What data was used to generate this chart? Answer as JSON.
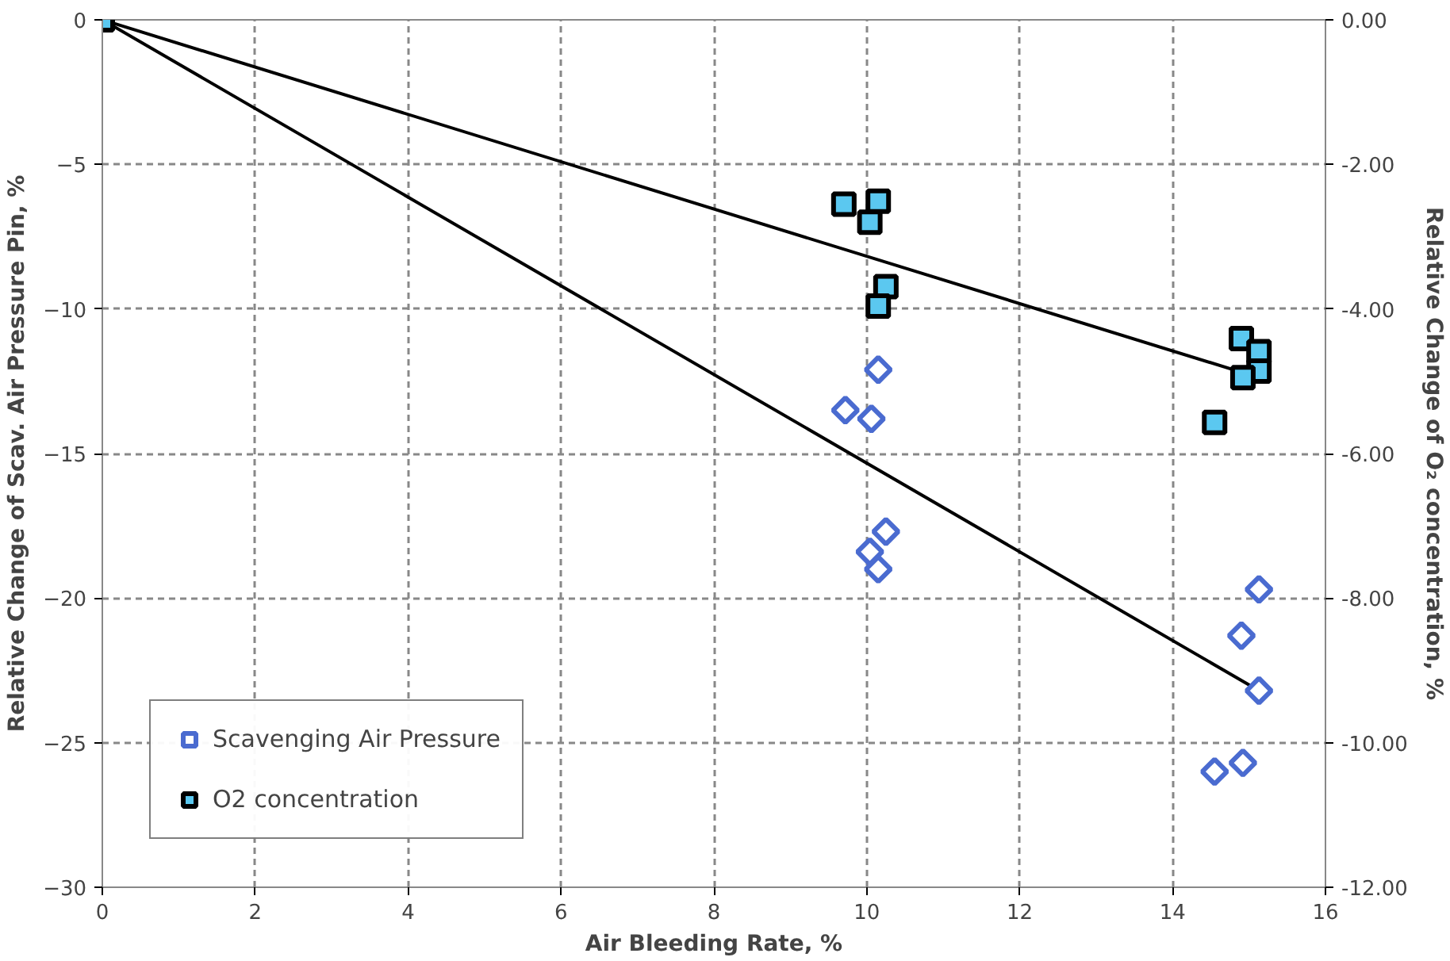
{
  "chart_data": {
    "type": "scatter",
    "xlabel": "Air Bleeding Rate, %",
    "ylabel": "Relative Change of Scav. Air Pressure Pin, %",
    "y2label": "Relative Change of O₂ concentration, %",
    "xlim": [
      0,
      16
    ],
    "xticks": [
      0,
      2,
      4,
      6,
      8,
      10,
      12,
      14,
      16
    ],
    "ylim": [
      -30,
      0
    ],
    "yticks": [
      -30,
      -25,
      -20,
      -15,
      -10,
      -5,
      0
    ],
    "y2lim": [
      -12,
      0
    ],
    "y2ticks": [
      {
        "value": -12,
        "label": "-12.00"
      },
      {
        "value": -10,
        "label": "-10.00"
      },
      {
        "value": -8,
        "label": "-8.00"
      },
      {
        "value": -6,
        "label": "-6.00"
      },
      {
        "value": -4,
        "label": "-4.00"
      },
      {
        "value": -2,
        "label": "-2.00"
      },
      {
        "value": 0,
        "label": "0.00"
      }
    ],
    "grid": true,
    "legend": "bottom left",
    "series": [
      {
        "type": "line",
        "color": "#000000",
        "marker": "none",
        "line_style": "solid",
        "x": [
          0,
          15.13
        ],
        "values": [
          0,
          -23.2
        ]
      },
      {
        "type": "line",
        "color": "#000000",
        "marker": "none",
        "line_style": "solid",
        "axis": "y2",
        "x": [
          0,
          15.04
        ],
        "values": [
          0,
          -4.92
        ]
      },
      {
        "name": "Scavenging Air Pressure",
        "color": "#4a6bd0",
        "marker": "diamond",
        "x": [
          9.72,
          10.06,
          10.15,
          10.25,
          10.04,
          10.15,
          15.13,
          14.9,
          15.13,
          14.92,
          14.55
        ],
        "values": [
          -13.5,
          -13.8,
          -12.1,
          -17.7,
          -18.4,
          -19.0,
          -19.7,
          -21.3,
          -23.2,
          -25.7,
          -26.0
        ]
      },
      {
        "name": "O2 concentration",
        "color": "#5bc8f0",
        "marker": "square",
        "axis": "y2",
        "x": [
          0,
          9.7,
          10.15,
          10.04,
          10.25,
          10.15,
          14.9,
          15.13,
          15.13,
          14.92,
          14.55
        ],
        "values": [
          0,
          -2.55,
          -2.51,
          -2.8,
          -3.69,
          -3.96,
          -4.41,
          -4.59,
          -4.86,
          -4.95,
          -5.57
        ]
      }
    ]
  }
}
